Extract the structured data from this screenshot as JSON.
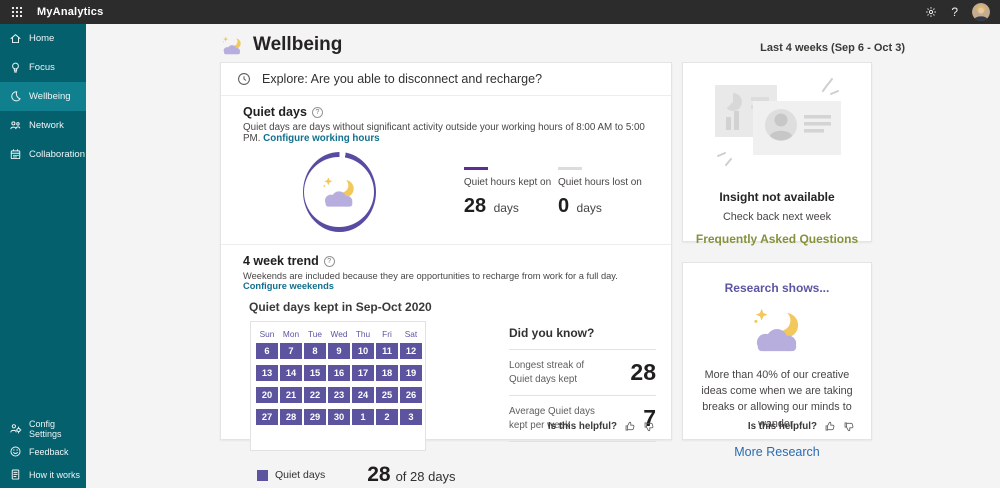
{
  "topbar": {
    "app_title": "MyAnalytics",
    "help_label": "?"
  },
  "sidebar": {
    "items": [
      {
        "label": "Home",
        "icon": "home-icon",
        "active": false
      },
      {
        "label": "Focus",
        "icon": "lightbulb-icon",
        "active": false
      },
      {
        "label": "Wellbeing",
        "icon": "moon-icon",
        "active": true
      },
      {
        "label": "Network",
        "icon": "people-icon",
        "active": false
      },
      {
        "label": "Collaboration",
        "icon": "calendar-icon",
        "active": false
      }
    ],
    "footer": [
      {
        "label": "Config Settings",
        "icon": "person-gear-icon"
      },
      {
        "label": "Feedback",
        "icon": "feedback-smiley-icon"
      },
      {
        "label": "How it works",
        "icon": "document-icon"
      }
    ]
  },
  "header": {
    "title": "Wellbeing",
    "date_range": "Last 4 weeks (Sep 6 - Oct 3)"
  },
  "explore": {
    "text": "Explore: Are you able to disconnect and recharge?"
  },
  "quiet_days": {
    "title": "Quiet days",
    "description": "Quiet days are days without significant activity outside your working hours of 8:00 AM to 5:00 PM.",
    "config_link": "Configure working hours",
    "kept_label": "Quiet hours kept on",
    "kept_value": "28",
    "kept_unit": "days",
    "lost_label": "Quiet hours lost on",
    "lost_value": "0",
    "lost_unit": "days"
  },
  "trend": {
    "title": "4 week trend",
    "description": "Weekends are included because they are opportunities to recharge from work for a full day.",
    "config_link": "Configure weekends",
    "calendar_title": "Quiet days kept in Sep-Oct 2020",
    "legend_label": "Quiet days",
    "summary_value": "28",
    "summary_suffix": "of 28 days"
  },
  "chart_data": {
    "type": "heatmap",
    "title": "Quiet days kept in Sep-Oct 2020",
    "day_headers": [
      "Sun",
      "Mon",
      "Tue",
      "Wed",
      "Thu",
      "Fri",
      "Sat"
    ],
    "weeks": [
      [
        6,
        7,
        8,
        9,
        10,
        11,
        12
      ],
      [
        13,
        14,
        15,
        16,
        17,
        18,
        19
      ],
      [
        20,
        21,
        22,
        23,
        24,
        25,
        26
      ],
      [
        27,
        28,
        29,
        30,
        1,
        2,
        3
      ]
    ],
    "all_days_quiet": true,
    "quiet_days_total": 28,
    "days_total": 28,
    "donut": {
      "kept_days": 28,
      "lost_days": 0
    }
  },
  "did_you_know": {
    "title": "Did you know?",
    "facts": [
      {
        "label": "Longest streak of Quiet days kept",
        "value": "28"
      },
      {
        "label": "Average Quiet days kept per week",
        "value": "7"
      }
    ]
  },
  "helpful": {
    "label": "Is this helpful?"
  },
  "insight_card": {
    "title": "Insight not available",
    "subtitle": "Check back next week",
    "link": "Frequently Asked Questions"
  },
  "research_card": {
    "title": "Research shows...",
    "body": "More than 40% of our creative ideas come when we are taking breaks or allowing our minds to wander.",
    "link": "More Research"
  },
  "colors": {
    "accent_purple": "#5c549f",
    "donut_ring": "#584ca2",
    "kept_bar": "#5c2e91",
    "sidebar_bg": "#05606e",
    "sidebar_active": "#11808e",
    "topbar_bg": "#2d2c2c",
    "link_teal": "#11708e",
    "faq_green": "#87913d",
    "research_link": "#2b6bb1"
  }
}
